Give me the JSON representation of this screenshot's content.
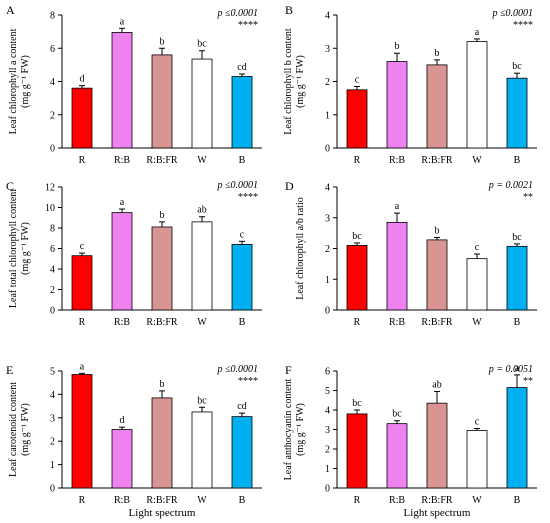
{
  "figure": {
    "x_axis_title": "Light spectrum",
    "bar_colors": [
      "#ff0000",
      "#ee82ee",
      "#d99594",
      "#ffffff",
      "#00b0f0"
    ]
  },
  "chart_data": [
    {
      "type": "bar",
      "panel": "A",
      "categories": [
        "R",
        "R:B",
        "R:B:FR",
        "W",
        "B"
      ],
      "values": [
        3.6,
        6.95,
        5.6,
        5.35,
        4.3
      ],
      "errors": [
        0.15,
        0.25,
        0.4,
        0.5,
        0.15
      ],
      "letters": [
        "d",
        "a",
        "b",
        "bc",
        "cd"
      ],
      "ylabel_lines": [
        "Leaf chlorophyll a content",
        "(mg g⁻¹ FW)"
      ],
      "ylim": [
        0,
        8
      ],
      "yticks": [
        0,
        2,
        4,
        6,
        8
      ],
      "p_text": "p ≤0.0001",
      "sig": "****",
      "grid": false
    },
    {
      "type": "bar",
      "panel": "B",
      "categories": [
        "R",
        "R:B",
        "R:B:FR",
        "W",
        "B"
      ],
      "values": [
        1.75,
        2.6,
        2.5,
        3.2,
        2.1
      ],
      "errors": [
        0.1,
        0.25,
        0.15,
        0.08,
        0.15
      ],
      "letters": [
        "c",
        "b",
        "b",
        "a",
        "bc"
      ],
      "ylabel_lines": [
        "Leaf chlorophyll b content",
        "(mg g⁻¹ FW)"
      ],
      "ylim": [
        0,
        4
      ],
      "yticks": [
        0,
        1,
        2,
        3,
        4
      ],
      "p_text": "p ≤0.0001",
      "sig": "****",
      "grid": false
    },
    {
      "type": "bar",
      "panel": "C",
      "categories": [
        "R",
        "R:B",
        "R:B:FR",
        "W",
        "B"
      ],
      "values": [
        5.3,
        9.5,
        8.1,
        8.6,
        6.4
      ],
      "errors": [
        0.25,
        0.35,
        0.5,
        0.5,
        0.3
      ],
      "letters": [
        "c",
        "a",
        "b",
        "ab",
        "c"
      ],
      "ylabel_lines": [
        "Leaf total chlorophyll content",
        "(mg g⁻¹ FW)"
      ],
      "ylim": [
        0,
        12
      ],
      "yticks": [
        0,
        2,
        4,
        6,
        8,
        10,
        12
      ],
      "p_text": "p ≤0.0001",
      "sig": "****",
      "grid": false
    },
    {
      "type": "bar",
      "panel": "D",
      "categories": [
        "R",
        "R:B",
        "R:B:FR",
        "W",
        "B"
      ],
      "values": [
        2.1,
        2.85,
        2.28,
        1.67,
        2.07
      ],
      "errors": [
        0.08,
        0.3,
        0.08,
        0.15,
        0.08
      ],
      "letters": [
        "bc",
        "a",
        "b",
        "c",
        "bc"
      ],
      "ylabel_lines": [
        "Leaf chlorophyll a/b ratio"
      ],
      "ylim": [
        0,
        4
      ],
      "yticks": [
        0,
        1,
        2,
        3,
        4
      ],
      "p_text": "p = 0.0021",
      "sig": "**",
      "grid": false
    },
    {
      "type": "bar",
      "panel": "E",
      "categories": [
        "R",
        "R:B",
        "R:B:FR",
        "W",
        "B"
      ],
      "values": [
        4.85,
        2.5,
        3.85,
        3.25,
        3.05
      ],
      "errors": [
        0.05,
        0.1,
        0.3,
        0.2,
        0.15
      ],
      "letters": [
        "a",
        "d",
        "b",
        "bc",
        "cd"
      ],
      "ylabel_lines": [
        "Leaf carotenoid content",
        "(mg g⁻¹ FW)"
      ],
      "ylim": [
        0,
        5
      ],
      "yticks": [
        0,
        1,
        2,
        3,
        4,
        5
      ],
      "p_text": "p ≤0.0001",
      "sig": "****",
      "grid": false
    },
    {
      "type": "bar",
      "panel": "F",
      "categories": [
        "R",
        "R:B",
        "R:B:FR",
        "W",
        "B"
      ],
      "values": [
        3.8,
        3.3,
        4.35,
        2.95,
        5.15
      ],
      "errors": [
        0.2,
        0.15,
        0.6,
        0.1,
        0.65
      ],
      "letters": [
        "bc",
        "bc",
        "ab",
        "c",
        "a"
      ],
      "ylabel_lines": [
        "Leaf anthocyanin content",
        "(mg g⁻¹ FW)"
      ],
      "ylim": [
        0,
        6
      ],
      "yticks": [
        0,
        1,
        2,
        3,
        4,
        5,
        6
      ],
      "p_text": "p = 0.0051",
      "sig": "**",
      "grid": false
    }
  ]
}
